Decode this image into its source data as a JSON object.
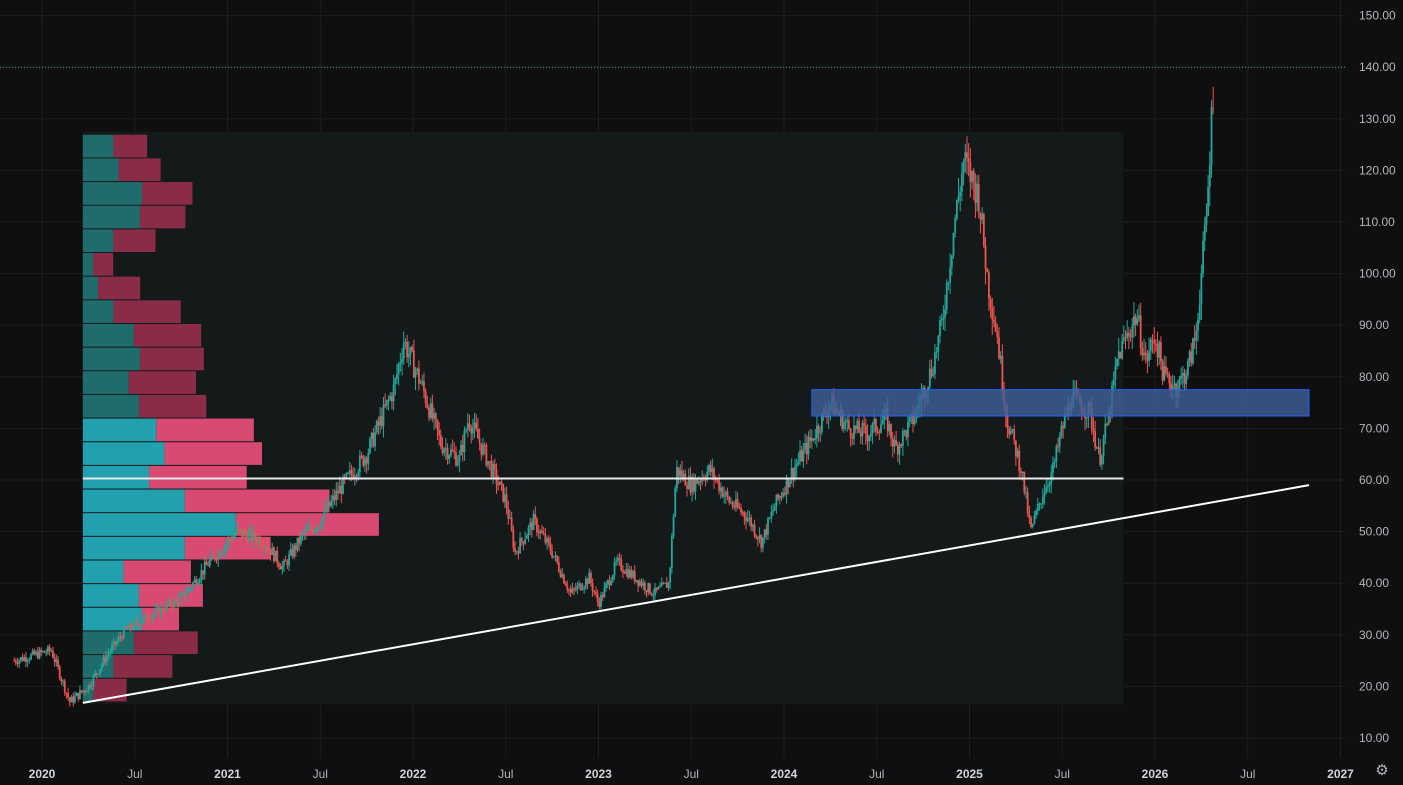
{
  "colors": {
    "background": "#0f0f0f",
    "grid": "#1f1f1f",
    "up": "#26a69a",
    "down": "#ef5350",
    "profile_up": "#22a0ad",
    "profile_down": "#d84a71",
    "profile_up_dim": "#1f6c6c",
    "profile_down_dim": "#8a2c48",
    "zone_fill": "#3e5f98",
    "zone_border": "#2962ff",
    "last_price_line": "#26a69a",
    "trendline": "#ffffff"
  },
  "icons": {
    "settings": "gear-icon"
  },
  "chart_data": {
    "type": "candlestick",
    "title": "",
    "xlabel": "",
    "ylabel": "",
    "ylim": [
      5,
      155
    ],
    "x_range": [
      "2019-10",
      "2027-04"
    ],
    "y_ticks": [
      "150.00",
      "140.00",
      "130.00",
      "120.00",
      "110.00",
      "100.00",
      "90.00",
      "80.00",
      "70.00",
      "60.00",
      "50.00",
      "40.00",
      "30.00",
      "20.00",
      "10.00"
    ],
    "y_tick_values": [
      150,
      140,
      130,
      120,
      110,
      100,
      90,
      80,
      70,
      60,
      50,
      40,
      30,
      20,
      10
    ],
    "x_ticks": [
      {
        "label": "2020",
        "year": true,
        "x": 2020.0
      },
      {
        "label": "Jul",
        "year": false,
        "x": 2020.5
      },
      {
        "label": "2021",
        "year": true,
        "x": 2021.0
      },
      {
        "label": "Jul",
        "year": false,
        "x": 2021.5
      },
      {
        "label": "2022",
        "year": true,
        "x": 2022.0
      },
      {
        "label": "Jul",
        "year": false,
        "x": 2022.5
      },
      {
        "label": "2023",
        "year": true,
        "x": 2023.0
      },
      {
        "label": "Jul",
        "year": false,
        "x": 2023.5
      },
      {
        "label": "2024",
        "year": true,
        "x": 2024.0
      },
      {
        "label": "Jul",
        "year": false,
        "x": 2024.5
      },
      {
        "label": "2025",
        "year": true,
        "x": 2025.0
      },
      {
        "label": "Jul",
        "year": false,
        "x": 2025.5
      },
      {
        "label": "2026",
        "year": true,
        "x": 2026.0
      },
      {
        "label": "Jul",
        "year": false,
        "x": 2026.5
      },
      {
        "label": "2027",
        "year": true,
        "x": 2027.0
      }
    ],
    "grid": true,
    "last_price": 140,
    "price_path": [
      [
        2019.85,
        25
      ],
      [
        2020.05,
        27
      ],
      [
        2020.15,
        17
      ],
      [
        2020.25,
        20
      ],
      [
        2020.35,
        26
      ],
      [
        2020.45,
        31
      ],
      [
        2020.6,
        34
      ],
      [
        2020.75,
        37
      ],
      [
        2020.9,
        44
      ],
      [
        2021.05,
        50
      ],
      [
        2021.2,
        48
      ],
      [
        2021.3,
        43
      ],
      [
        2021.4,
        49
      ],
      [
        2021.5,
        52
      ],
      [
        2021.6,
        58
      ],
      [
        2021.75,
        65
      ],
      [
        2021.9,
        78
      ],
      [
        2021.95,
        87
      ],
      [
        2022.05,
        78
      ],
      [
        2022.15,
        67
      ],
      [
        2022.25,
        64
      ],
      [
        2022.3,
        72
      ],
      [
        2022.4,
        64
      ],
      [
        2022.5,
        56
      ],
      [
        2022.55,
        46
      ],
      [
        2022.65,
        52
      ],
      [
        2022.75,
        46
      ],
      [
        2022.85,
        38
      ],
      [
        2022.95,
        41
      ],
      [
        2023.0,
        36
      ],
      [
        2023.1,
        44
      ],
      [
        2023.2,
        41
      ],
      [
        2023.3,
        38
      ],
      [
        2023.38,
        40
      ],
      [
        2023.42,
        62
      ],
      [
        2023.5,
        59
      ],
      [
        2023.6,
        62
      ],
      [
        2023.7,
        56
      ],
      [
        2023.8,
        53
      ],
      [
        2023.88,
        48
      ],
      [
        2023.95,
        55
      ],
      [
        2024.05,
        62
      ],
      [
        2024.15,
        68
      ],
      [
        2024.25,
        75
      ],
      [
        2024.35,
        70
      ],
      [
        2024.45,
        69
      ],
      [
        2024.55,
        72
      ],
      [
        2024.6,
        66
      ],
      [
        2024.7,
        72
      ],
      [
        2024.8,
        82
      ],
      [
        2024.85,
        90
      ],
      [
        2024.92,
        110
      ],
      [
        2024.97,
        122
      ],
      [
        2025.05,
        115
      ],
      [
        2025.1,
        98
      ],
      [
        2025.15,
        88
      ],
      [
        2025.2,
        72
      ],
      [
        2025.28,
        62
      ],
      [
        2025.33,
        50
      ],
      [
        2025.4,
        58
      ],
      [
        2025.45,
        62
      ],
      [
        2025.5,
        70
      ],
      [
        2025.55,
        76
      ],
      [
        2025.65,
        73
      ],
      [
        2025.7,
        64
      ],
      [
        2025.75,
        72
      ],
      [
        2025.8,
        84
      ],
      [
        2025.9,
        92
      ],
      [
        2025.95,
        83
      ],
      [
        2026.0,
        88
      ],
      [
        2026.05,
        80
      ],
      [
        2026.12,
        78
      ],
      [
        2026.18,
        82
      ],
      [
        2026.22,
        88
      ],
      [
        2026.25,
        100
      ],
      [
        2026.28,
        112
      ],
      [
        2026.3,
        127
      ],
      [
        2026.32,
        140
      ]
    ],
    "volume_profile": {
      "price_range": [
        17,
        127
      ],
      "rows": [
        {
          "up": 0.1,
          "down": 0.2
        },
        {
          "up": 0.3,
          "down": 0.35
        },
        {
          "up": 0.5,
          "down": 0.38
        },
        {
          "up": 0.58,
          "down": 0.22
        },
        {
          "up": 0.55,
          "down": 0.38
        },
        {
          "up": 0.4,
          "down": 0.4
        },
        {
          "up": 1.0,
          "down": 0.51
        },
        {
          "up": 1.5,
          "down": 0.85
        },
        {
          "up": 1.0,
          "down": 0.86
        },
        {
          "up": 0.65,
          "down": 0.58
        },
        {
          "up": 0.8,
          "down": 0.58
        },
        {
          "up": 0.72,
          "down": 0.58
        },
        {
          "up": 0.55,
          "down": 0.4
        },
        {
          "up": 0.45,
          "down": 0.4
        },
        {
          "up": 0.56,
          "down": 0.38
        },
        {
          "up": 0.5,
          "down": 0.4
        },
        {
          "up": 0.3,
          "down": 0.4
        },
        {
          "up": 0.15,
          "down": 0.25
        },
        {
          "up": 0.1,
          "down": 0.12
        },
        {
          "up": 0.3,
          "down": 0.25
        },
        {
          "up": 0.56,
          "down": 0.27
        },
        {
          "up": 0.58,
          "down": 0.3
        },
        {
          "up": 0.35,
          "down": 0.25
        },
        {
          "up": 0.3,
          "down": 0.2
        }
      ]
    },
    "horizontal_line": {
      "price": 60.3,
      "from": 2020.22,
      "to": 2025.83
    },
    "zone": {
      "price_low": 72.4,
      "price_high": 77.5,
      "from": 2024.15,
      "to": 2026.83
    },
    "trendline": {
      "from": [
        2020.22,
        16.8
      ],
      "to": [
        2026.83,
        59.0
      ]
    },
    "profile_area": {
      "from": 2020.22,
      "to": 2025.83,
      "price_low": 16.5,
      "price_high": 127.5
    }
  }
}
